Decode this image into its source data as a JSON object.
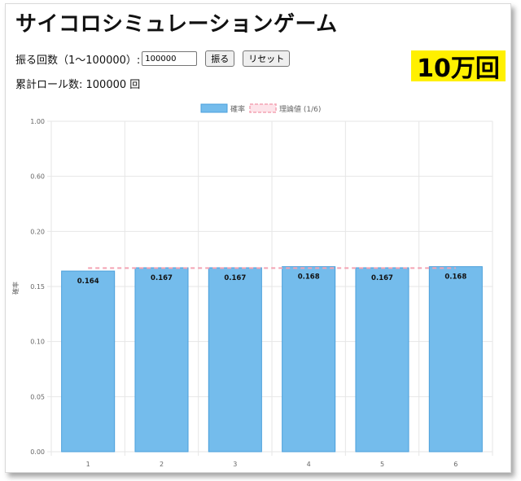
{
  "page": {
    "title": "サイコロシミュレーションゲーム",
    "badge": "10万回"
  },
  "controls": {
    "label": "振る回数（1〜100000）:",
    "input_value": "100000",
    "roll_button": "振る",
    "reset_button": "リセット"
  },
  "stats": {
    "total_rolls_text": "累計ロール数: 100000 回"
  },
  "colors": {
    "bar_fill": "#74bcec",
    "bar_stroke": "#4a9fdb",
    "theory_line": "#f4a3b3",
    "badge_bg": "#fff000",
    "grid": "#e6e6e6"
  },
  "chart_data": {
    "type": "bar",
    "categories": [
      "1",
      "2",
      "3",
      "4",
      "5",
      "6"
    ],
    "series": [
      {
        "name": "確率",
        "values": [
          0.164,
          0.167,
          0.167,
          0.168,
          0.167,
          0.168
        ]
      },
      {
        "name": "理論値 (1/6)",
        "type": "line",
        "value": 0.1667
      }
    ],
    "data_labels": [
      "0.164",
      "0.167",
      "0.167",
      "0.168",
      "0.167",
      "0.168"
    ],
    "yticks": [
      "1.00",
      "0.60",
      "0.20",
      "0.15",
      "0.10",
      "0.05",
      "0.00"
    ],
    "ytick_values": [
      1.0,
      0.6,
      0.2,
      0.15,
      0.1,
      0.05,
      0.0
    ],
    "ylabel": "確率",
    "xlabel": "",
    "legend_position": "top",
    "grid": true
  }
}
